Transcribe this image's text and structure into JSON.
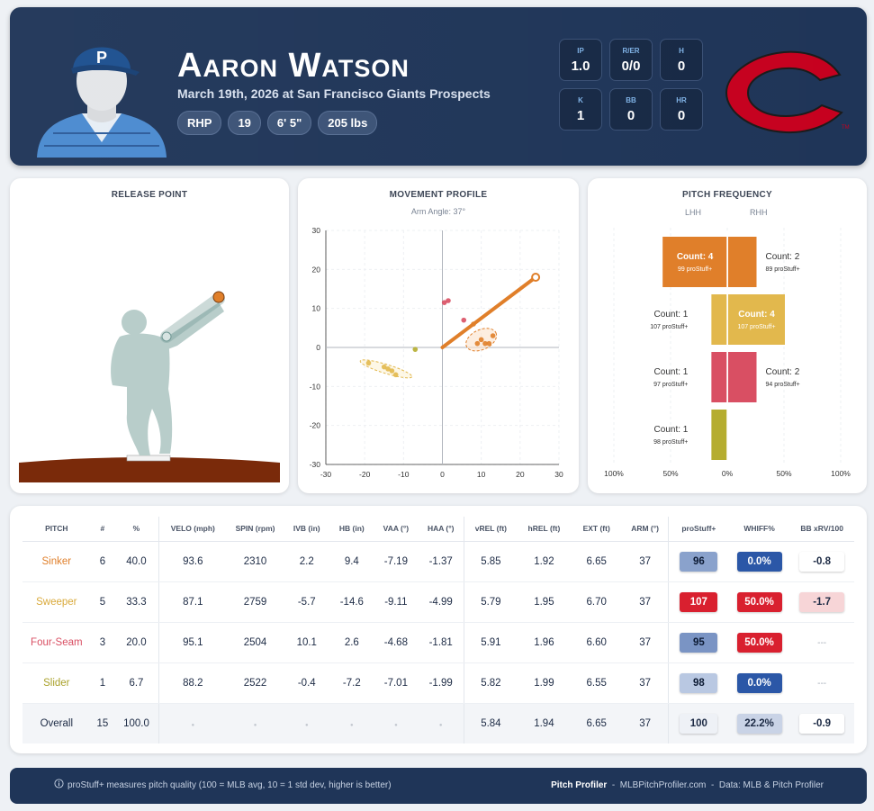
{
  "player": {
    "name": "Aaron Watson",
    "subtitle": "March 19th, 2026 at San Francisco Giants Prospects",
    "chips": [
      "RHP",
      "19",
      "6' 5\"",
      "205 lbs"
    ]
  },
  "stats": [
    {
      "label": "IP",
      "value": "1.0"
    },
    {
      "label": "R/ER",
      "value": "0/0"
    },
    {
      "label": "H",
      "value": "0"
    },
    {
      "label": "K",
      "value": "1"
    },
    {
      "label": "BB",
      "value": "0"
    },
    {
      "label": "HR",
      "value": "0"
    }
  ],
  "colors": {
    "header": "#1f3558",
    "sinker": "#e07f2a",
    "sweeper": "#e2b84d",
    "fourseam": "#d94f63",
    "slider": "#b5ad2f",
    "team_red": "#c6011f"
  },
  "release_point": {
    "title": "RELEASE POINT"
  },
  "movement": {
    "title": "MOVEMENT PROFILE",
    "subtitle": "Arm Angle: 37°",
    "chart_data": {
      "type": "scatter",
      "xlim": [
        -30,
        30
      ],
      "ylim": [
        -30,
        30
      ],
      "x_ticks": [
        "-30",
        "-20",
        "-10",
        "0",
        "10",
        "20",
        "30"
      ],
      "y_ticks": [
        "30",
        "20",
        "10",
        "0",
        "-10",
        "-20",
        "-30"
      ],
      "arm_angle_line": {
        "from": [
          0,
          0
        ],
        "to": [
          24,
          18
        ]
      },
      "series": [
        {
          "pitch": "sinker",
          "points": [
            [
              8,
              6
            ],
            [
              10,
              2
            ],
            [
              11,
              1
            ],
            [
              12,
              1
            ],
            [
              13,
              3
            ],
            [
              9,
              1
            ]
          ]
        },
        {
          "pitch": "sweeper",
          "points": [
            [
              -19,
              -4
            ],
            [
              -15,
              -5
            ],
            [
              -14,
              -5.5
            ],
            [
              -13,
              -6
            ],
            [
              -12,
              -7
            ]
          ]
        },
        {
          "pitch": "fourseam",
          "points": [
            [
              0.5,
              11.5
            ],
            [
              1.5,
              12
            ],
            [
              5.5,
              7
            ]
          ]
        },
        {
          "pitch": "slider",
          "points": [
            [
              -7,
              -0.5
            ]
          ]
        }
      ]
    }
  },
  "frequency": {
    "title": "PITCH FREQUENCY",
    "lhh_label": "LHH",
    "rhh_label": "RHH",
    "axis_ticks": [
      "100%",
      "50%",
      "0%",
      "50%",
      "100%"
    ],
    "chart_data": {
      "type": "bar",
      "categories": [
        "Sinker",
        "Sweeper",
        "Four-Seam",
        "Slider"
      ],
      "series": [
        {
          "name": "LHH",
          "percent": [
            57,
            14,
            14,
            14
          ]
        },
        {
          "name": "RHH",
          "percent": [
            25,
            50,
            25,
            0
          ]
        }
      ]
    },
    "bars": [
      {
        "pitch": "sinker",
        "lhh": {
          "count": "Count: 4",
          "stuff": "99 proStuff+"
        },
        "rhh": {
          "count": "Count: 2",
          "stuff": "89 proStuff+"
        }
      },
      {
        "pitch": "sweeper",
        "lhh": {
          "count": "Count: 1",
          "stuff": "107 proStuff+"
        },
        "rhh": {
          "count": "Count: 4",
          "stuff": "107 proStuff+"
        }
      },
      {
        "pitch": "fourseam",
        "lhh": {
          "count": "Count: 1",
          "stuff": "97 proStuff+"
        },
        "rhh": {
          "count": "Count: 2",
          "stuff": "94 proStuff+"
        }
      },
      {
        "pitch": "slider",
        "lhh": {
          "count": "Count: 1",
          "stuff": "98 proStuff+"
        },
        "rhh": {
          "count": "",
          "stuff": ""
        }
      }
    ]
  },
  "table": {
    "headers": [
      "PITCH",
      "#",
      "%",
      "VELO (mph)",
      "SPIN (rpm)",
      "IVB (in)",
      "HB (in)",
      "VAA (°)",
      "HAA (°)",
      "vREL (ft)",
      "hREL (ft)",
      "EXT (ft)",
      "ARM (°)",
      "proStuff+",
      "WHIFF%",
      "BB xRV/100"
    ],
    "rows": [
      {
        "pitch": "Sinker",
        "color": "#e07f2a",
        "count": "6",
        "pct": "40.0",
        "velo": "93.6",
        "spin": "2310",
        "ivb": "2.2",
        "hb": "9.4",
        "vaa": "-7.19",
        "haa": "-1.37",
        "vrel": "5.85",
        "hrel": "1.92",
        "ext": "6.65",
        "arm": "37",
        "stuff": "96",
        "stuff_bg": "#8aa2cc",
        "stuff_fg": "#0c1a33",
        "whiff": "0.0%",
        "whiff_bg": "#2b57a7",
        "whiff_fg": "#ffffff",
        "xrv": "-0.8",
        "xrv_bg": "#ffffff",
        "xrv_fg": "#1c2a44"
      },
      {
        "pitch": "Sweeper",
        "color": "#d9a93a",
        "count": "5",
        "pct": "33.3",
        "velo": "87.1",
        "spin": "2759",
        "ivb": "-5.7",
        "hb": "-14.6",
        "vaa": "-9.11",
        "haa": "-4.99",
        "vrel": "5.79",
        "hrel": "1.95",
        "ext": "6.70",
        "arm": "37",
        "stuff": "107",
        "stuff_bg": "#d9202f",
        "stuff_fg": "#ffffff",
        "whiff": "50.0%",
        "whiff_bg": "#d9202f",
        "whiff_fg": "#ffffff",
        "xrv": "-1.7",
        "xrv_bg": "#f7d5d7",
        "xrv_fg": "#1c2a44"
      },
      {
        "pitch": "Four-Seam",
        "color": "#d94f63",
        "count": "3",
        "pct": "20.0",
        "velo": "95.1",
        "spin": "2504",
        "ivb": "10.1",
        "hb": "2.6",
        "vaa": "-4.68",
        "haa": "-1.81",
        "vrel": "5.91",
        "hrel": "1.96",
        "ext": "6.60",
        "arm": "37",
        "stuff": "95",
        "stuff_bg": "#7a94c4",
        "stuff_fg": "#0c1a33",
        "whiff": "50.0%",
        "whiff_bg": "#d9202f",
        "whiff_fg": "#ffffff",
        "xrv": "---",
        "xrv_bg": "",
        "xrv_fg": "#a6adb8"
      },
      {
        "pitch": "Slider",
        "color": "#a9a12a",
        "count": "1",
        "pct": "6.7",
        "velo": "88.2",
        "spin": "2522",
        "ivb": "-0.4",
        "hb": "-7.2",
        "vaa": "-7.01",
        "haa": "-1.99",
        "vrel": "5.82",
        "hrel": "1.99",
        "ext": "6.55",
        "arm": "37",
        "stuff": "98",
        "stuff_bg": "#b9c8e2",
        "stuff_fg": "#0c1a33",
        "whiff": "0.0%",
        "whiff_bg": "#2b57a7",
        "whiff_fg": "#ffffff",
        "xrv": "---",
        "xrv_bg": "",
        "xrv_fg": "#a6adb8"
      }
    ],
    "overall": {
      "pitch": "Overall",
      "count": "15",
      "pct": "100.0",
      "vrel": "5.84",
      "hrel": "1.94",
      "ext": "6.65",
      "arm": "37",
      "stuff": "100",
      "stuff_bg": "#eef1f6",
      "whiff": "22.2%",
      "whiff_bg": "#c9d3e6",
      "xrv": "-0.9",
      "xrv_bg": "#ffffff"
    }
  },
  "footer": {
    "note": "proStuff+ measures pitch quality (100 = MLB avg, 10 = 1 std dev, higher is better)",
    "brand": "Pitch Profiler",
    "sep": "-",
    "site": "MLBPitchProfiler.com",
    "source": "Data: MLB & Pitch Profiler"
  }
}
